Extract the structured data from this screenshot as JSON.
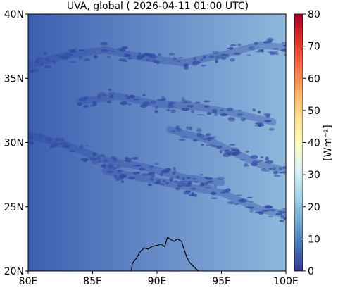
{
  "title": "UVA, global ( 2026-04-11 01:00 UTC)",
  "map": {
    "lon_range": [
      80,
      100
    ],
    "lat_range": [
      20,
      40
    ],
    "x_ticks": [
      {
        "value": 80,
        "label": "80E"
      },
      {
        "value": 85,
        "label": "85E"
      },
      {
        "value": 90,
        "label": "90E"
      },
      {
        "value": 95,
        "label": "95E"
      },
      {
        "value": 100,
        "label": "100E"
      }
    ],
    "y_ticks": [
      {
        "value": 20,
        "label": "20N"
      },
      {
        "value": 25,
        "label": "25N"
      },
      {
        "value": 30,
        "label": "30N"
      },
      {
        "value": 35,
        "label": "35N"
      },
      {
        "value": 40,
        "label": "40N"
      }
    ],
    "coastline": [
      [
        88.0,
        20.0
      ],
      [
        88.1,
        20.6
      ],
      [
        88.4,
        21.0
      ],
      [
        88.7,
        21.5
      ],
      [
        89.0,
        21.8
      ],
      [
        89.3,
        21.7
      ],
      [
        89.6,
        21.9
      ],
      [
        90.0,
        22.0
      ],
      [
        90.3,
        22.1
      ],
      [
        90.6,
        21.9
      ],
      [
        90.8,
        22.6
      ],
      [
        91.0,
        22.5
      ],
      [
        91.3,
        22.3
      ],
      [
        91.6,
        22.5
      ],
      [
        91.9,
        22.3
      ],
      [
        92.1,
        21.7
      ],
      [
        92.3,
        21.1
      ],
      [
        92.5,
        20.7
      ],
      [
        92.8,
        20.4
      ],
      [
        93.2,
        20.0
      ]
    ],
    "cloud_bands": [
      [
        [
          80,
          36.0
        ],
        [
          83,
          36.8
        ],
        [
          86,
          37.2
        ],
        [
          89,
          36.6
        ],
        [
          92,
          36.2
        ],
        [
          95,
          36.8
        ],
        [
          98,
          37.6
        ],
        [
          100,
          37.4
        ]
      ],
      [
        [
          84,
          33.2
        ],
        [
          87,
          33.6
        ],
        [
          90,
          33.0
        ],
        [
          93,
          32.8
        ],
        [
          96,
          32.3
        ],
        [
          99,
          31.6
        ]
      ],
      [
        [
          80,
          30.6
        ],
        [
          83,
          29.8
        ],
        [
          86,
          28.6
        ],
        [
          89,
          28.1
        ],
        [
          92,
          27.3
        ],
        [
          95,
          26.9
        ]
      ],
      [
        [
          86,
          27.8
        ],
        [
          89,
          27.2
        ],
        [
          92,
          26.6
        ],
        [
          95,
          26.1
        ],
        [
          98,
          24.8
        ],
        [
          100,
          24.4
        ]
      ],
      [
        [
          91,
          31.0
        ],
        [
          94,
          30.2
        ],
        [
          96,
          29.2
        ],
        [
          98,
          28.3
        ],
        [
          100,
          27.8
        ]
      ]
    ]
  },
  "colorbar": {
    "label": "[Wm⁻²]",
    "min": 0,
    "max": 80,
    "ticks": [
      {
        "value": 0,
        "label": "0"
      },
      {
        "value": 10,
        "label": "10"
      },
      {
        "value": 20,
        "label": "20"
      },
      {
        "value": 30,
        "label": "30"
      },
      {
        "value": 40,
        "label": "40"
      },
      {
        "value": 50,
        "label": "50"
      },
      {
        "value": 60,
        "label": "60"
      },
      {
        "value": 70,
        "label": "70"
      },
      {
        "value": 80,
        "label": "80"
      }
    ],
    "colors": [
      "#313695",
      "#4575b4",
      "#74add1",
      "#abd9e9",
      "#e0f3f8",
      "#ffffbf",
      "#fee090",
      "#fdae61",
      "#f46d43",
      "#d73027",
      "#a50026"
    ]
  },
  "field": {
    "low_color": "#3d5eb0",
    "high_color": "#8fb8dd",
    "cloud_color": "#2f47a0"
  }
}
